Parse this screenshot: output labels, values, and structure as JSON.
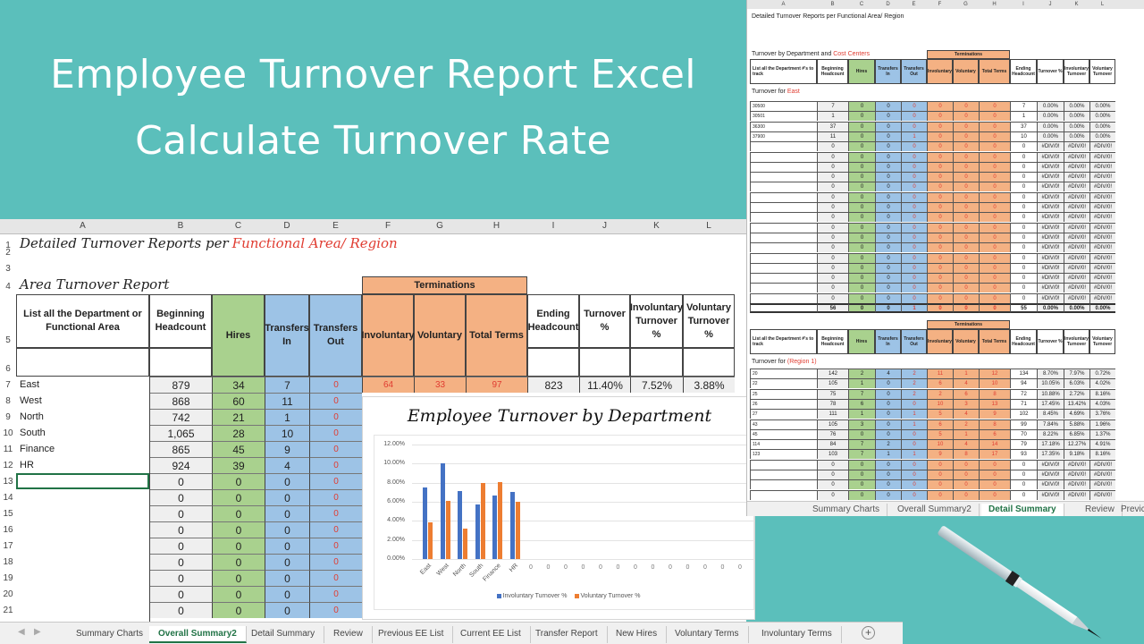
{
  "banner": {
    "line1": "Employee Turnover Report Excel",
    "line2": "Calculate Turnover Rate",
    "bg_color": "#5bbfbb"
  },
  "main_sheet": {
    "columns": [
      "A",
      "B",
      "C",
      "D",
      "E",
      "F",
      "G",
      "H",
      "I",
      "J",
      "K",
      "L"
    ],
    "title_black": "Detailed Turnover Reports per ",
    "title_red": "Functional Area/ Region",
    "section_title": "Area Turnover Report",
    "headers": {
      "dept": "List all the Department or Functional Area",
      "beginning": "Beginning Headcount",
      "hires": "Hires",
      "transfers_in": "Transfers In",
      "transfers_out": "Transfers Out",
      "terminations": "Terminations",
      "involuntary": "Involuntary",
      "voluntary": "Voluntary",
      "total_terms": "Total Terms",
      "ending": "Ending Headcount",
      "turnover_pct": "Turnover %",
      "invol_pct": "Involuntary Turnover %",
      "vol_pct": "Voluntary Turnover %"
    },
    "row_numbers": [
      "1",
      "2",
      "3",
      "4",
      "5",
      "6",
      "7",
      "8",
      "9",
      "10",
      "11",
      "12",
      "13",
      "14",
      "15",
      "16",
      "17",
      "18",
      "19",
      "20",
      "21"
    ],
    "rows": [
      {
        "dept": "East",
        "beginning": "879",
        "hires": "34",
        "tin": "7",
        "tout": "0",
        "invol": "64",
        "vol": "33",
        "total": "97",
        "ending": "823",
        "turnover": "11.40%",
        "invol_pct": "7.52%",
        "vol_pct": "3.88%"
      },
      {
        "dept": "West",
        "beginning": "868",
        "hires": "60",
        "tin": "11",
        "tout": "0"
      },
      {
        "dept": "North",
        "beginning": "742",
        "hires": "21",
        "tin": "1",
        "tout": "0"
      },
      {
        "dept": "South",
        "beginning": "1,065",
        "hires": "28",
        "tin": "10",
        "tout": "0"
      },
      {
        "dept": "Finance",
        "beginning": "865",
        "hires": "45",
        "tin": "9",
        "tout": "0"
      },
      {
        "dept": "HR",
        "beginning": "924",
        "hires": "39",
        "tin": "4",
        "tout": "0"
      },
      {
        "dept": "",
        "beginning": "0",
        "hires": "0",
        "tin": "0",
        "tout": "0"
      },
      {
        "dept": "",
        "beginning": "0",
        "hires": "0",
        "tin": "0",
        "tout": "0"
      },
      {
        "dept": "",
        "beginning": "0",
        "hires": "0",
        "tin": "0",
        "tout": "0"
      },
      {
        "dept": "",
        "beginning": "0",
        "hires": "0",
        "tin": "0",
        "tout": "0"
      },
      {
        "dept": "",
        "beginning": "0",
        "hires": "0",
        "tin": "0",
        "tout": "0"
      },
      {
        "dept": "",
        "beginning": "0",
        "hires": "0",
        "tin": "0",
        "tout": "0"
      },
      {
        "dept": "",
        "beginning": "0",
        "hires": "0",
        "tin": "0",
        "tout": "0"
      },
      {
        "dept": "",
        "beginning": "0",
        "hires": "0",
        "tin": "0",
        "tout": "0"
      },
      {
        "dept": "",
        "beginning": "0",
        "hires": "0",
        "tin": "0",
        "tout": "0"
      }
    ],
    "selected_cell": "A13"
  },
  "chart_data": {
    "type": "bar",
    "title": "Employee Turnover by Department",
    "categories": [
      "East",
      "West",
      "North",
      "South",
      "Finance",
      "HR",
      "0",
      "0",
      "0",
      "0",
      "0",
      "0",
      "0",
      "0",
      "0",
      "0",
      "0",
      "0",
      "0"
    ],
    "series": [
      {
        "name": "Involuntary Turnover %",
        "color": "#4472c4",
        "values": [
          7.52,
          10.0,
          7.1,
          5.7,
          6.7,
          7.0,
          0,
          0,
          0,
          0,
          0,
          0,
          0,
          0,
          0,
          0,
          0,
          0,
          0
        ]
      },
      {
        "name": "Voluntary Turnover %",
        "color": "#ed7d31",
        "values": [
          3.88,
          6.1,
          3.2,
          8.0,
          8.1,
          6.0,
          0,
          0,
          0,
          0,
          0,
          0,
          0,
          0,
          0,
          0,
          0,
          0,
          0
        ]
      }
    ],
    "yticks": [
      "12.00%",
      "10.00%",
      "8.00%",
      "6.00%",
      "4.00%",
      "2.00%",
      "0.00%"
    ],
    "ylim": [
      0,
      12
    ],
    "xlabel": "",
    "ylabel": "",
    "grid": true,
    "legend_position": "bottom"
  },
  "sheet_tabs": {
    "items": [
      "Summary Charts",
      "Overall Summary2",
      "Detail Summary",
      "Review",
      "Previous EE List",
      "Current EE List",
      "Transfer Report",
      "New Hires",
      "Voluntary Terms",
      "Involuntary Terms"
    ],
    "active": "Overall Summary2",
    "add_sheet": "+"
  },
  "inset_sheet": {
    "columns": [
      "A",
      "B",
      "C",
      "D",
      "E",
      "F",
      "G",
      "H",
      "I",
      "J",
      "K",
      "L"
    ],
    "title": "Detailed Turnover Reports per Functional Area/ Region",
    "section1_black": "Turnover by Department and ",
    "section1_red": "Cost Centers",
    "headers": [
      "List all the Department #'s to track",
      "Beginning Headcount",
      "Hires",
      "Transfers In",
      "Transfers Out",
      "Involuntary",
      "Voluntary",
      "Total Terms",
      "Ending Headcount",
      "Turnover %",
      "Involuntary Turnover",
      "Voluntary Turnover"
    ],
    "terminations": "Terminations",
    "group1_label": "Turnover for ",
    "group1_red": "East",
    "group1_rows": [
      [
        "30500",
        "7",
        "0",
        "0",
        "0",
        "0",
        "0",
        "0",
        "7",
        "0.00%",
        "0.00%",
        "0.00%"
      ],
      [
        "30501",
        "1",
        "0",
        "0",
        "0",
        "0",
        "0",
        "0",
        "1",
        "0.00%",
        "0.00%",
        "0.00%"
      ],
      [
        "36300",
        "37",
        "0",
        "0",
        "0",
        "0",
        "0",
        "0",
        "37",
        "0.00%",
        "0.00%",
        "0.00%"
      ],
      [
        "37900",
        "11",
        "0",
        "0",
        "1",
        "0",
        "0",
        "0",
        "10",
        "0.00%",
        "0.00%",
        "0.00%"
      ],
      [
        "",
        "0",
        "0",
        "0",
        "0",
        "0",
        "0",
        "0",
        "0",
        "#DIV/0!",
        "#DIV/0!",
        "#DIV/0!"
      ],
      [
        "",
        "0",
        "0",
        "0",
        "0",
        "0",
        "0",
        "0",
        "0",
        "#DIV/0!",
        "#DIV/0!",
        "#DIV/0!"
      ],
      [
        "",
        "0",
        "0",
        "0",
        "0",
        "0",
        "0",
        "0",
        "0",
        "#DIV/0!",
        "#DIV/0!",
        "#DIV/0!"
      ],
      [
        "",
        "0",
        "0",
        "0",
        "0",
        "0",
        "0",
        "0",
        "0",
        "#DIV/0!",
        "#DIV/0!",
        "#DIV/0!"
      ],
      [
        "",
        "0",
        "0",
        "0",
        "0",
        "0",
        "0",
        "0",
        "0",
        "#DIV/0!",
        "#DIV/0!",
        "#DIV/0!"
      ],
      [
        "",
        "0",
        "0",
        "0",
        "0",
        "0",
        "0",
        "0",
        "0",
        "#DIV/0!",
        "#DIV/0!",
        "#DIV/0!"
      ],
      [
        "",
        "0",
        "0",
        "0",
        "0",
        "0",
        "0",
        "0",
        "0",
        "#DIV/0!",
        "#DIV/0!",
        "#DIV/0!"
      ],
      [
        "",
        "0",
        "0",
        "0",
        "0",
        "0",
        "0",
        "0",
        "0",
        "#DIV/0!",
        "#DIV/0!",
        "#DIV/0!"
      ],
      [
        "",
        "0",
        "0",
        "0",
        "0",
        "0",
        "0",
        "0",
        "0",
        "#DIV/0!",
        "#DIV/0!",
        "#DIV/0!"
      ],
      [
        "",
        "0",
        "0",
        "0",
        "0",
        "0",
        "0",
        "0",
        "0",
        "#DIV/0!",
        "#DIV/0!",
        "#DIV/0!"
      ],
      [
        "",
        "0",
        "0",
        "0",
        "0",
        "0",
        "0",
        "0",
        "0",
        "#DIV/0!",
        "#DIV/0!",
        "#DIV/0!"
      ],
      [
        "",
        "0",
        "0",
        "0",
        "0",
        "0",
        "0",
        "0",
        "0",
        "#DIV/0!",
        "#DIV/0!",
        "#DIV/0!"
      ],
      [
        "",
        "0",
        "0",
        "0",
        "0",
        "0",
        "0",
        "0",
        "0",
        "#DIV/0!",
        "#DIV/0!",
        "#DIV/0!"
      ],
      [
        "",
        "0",
        "0",
        "0",
        "0",
        "0",
        "0",
        "0",
        "0",
        "#DIV/0!",
        "#DIV/0!",
        "#DIV/0!"
      ],
      [
        "",
        "0",
        "0",
        "0",
        "0",
        "0",
        "0",
        "0",
        "0",
        "#DIV/0!",
        "#DIV/0!",
        "#DIV/0!"
      ],
      [
        "",
        "0",
        "0",
        "0",
        "0",
        "0",
        "0",
        "0",
        "0",
        "#DIV/0!",
        "#DIV/0!",
        "#DIV/0!"
      ]
    ],
    "group1_total": [
      "",
      "56",
      "0",
      "0",
      "1",
      "0",
      "0",
      "0",
      "55",
      "0.00%",
      "0.00%",
      "0.00%"
    ],
    "group2_label": "Turnover for ",
    "group2_red": "(Region 1)",
    "group2_rows": [
      [
        "20",
        "142",
        "2",
        "4",
        "2",
        "11",
        "1",
        "12",
        "134",
        "8.70%",
        "7.97%",
        "0.72%"
      ],
      [
        "22",
        "105",
        "1",
        "0",
        "2",
        "6",
        "4",
        "10",
        "94",
        "10.05%",
        "6.03%",
        "4.02%"
      ],
      [
        "25",
        "75",
        "7",
        "0",
        "2",
        "2",
        "6",
        "8",
        "72",
        "10.88%",
        "2.72%",
        "8.16%"
      ],
      [
        "26",
        "78",
        "6",
        "0",
        "0",
        "10",
        "3",
        "13",
        "71",
        "17.45%",
        "13.42%",
        "4.03%"
      ],
      [
        "27",
        "111",
        "1",
        "0",
        "1",
        "5",
        "4",
        "9",
        "102",
        "8.45%",
        "4.69%",
        "3.76%"
      ],
      [
        "43",
        "105",
        "3",
        "0",
        "1",
        "6",
        "2",
        "8",
        "99",
        "7.84%",
        "5.88%",
        "1.96%"
      ],
      [
        "45",
        "76",
        "0",
        "0",
        "0",
        "5",
        "1",
        "6",
        "70",
        "8.22%",
        "6.85%",
        "1.37%"
      ],
      [
        "114",
        "84",
        "7",
        "2",
        "0",
        "10",
        "4",
        "14",
        "79",
        "17.18%",
        "12.27%",
        "4.91%"
      ],
      [
        "123",
        "103",
        "7",
        "1",
        "1",
        "9",
        "8",
        "17",
        "93",
        "17.35%",
        "9.18%",
        "8.16%"
      ],
      [
        "",
        "0",
        "0",
        "0",
        "0",
        "0",
        "0",
        "0",
        "0",
        "#DIV/0!",
        "#DIV/0!",
        "#DIV/0!"
      ],
      [
        "",
        "0",
        "0",
        "0",
        "0",
        "0",
        "0",
        "0",
        "0",
        "#DIV/0!",
        "#DIV/0!",
        "#DIV/0!"
      ],
      [
        "",
        "0",
        "0",
        "0",
        "0",
        "0",
        "0",
        "0",
        "0",
        "#DIV/0!",
        "#DIV/0!",
        "#DIV/0!"
      ],
      [
        "",
        "0",
        "0",
        "0",
        "0",
        "0",
        "0",
        "0",
        "0",
        "#DIV/0!",
        "#DIV/0!",
        "#DIV/0!"
      ]
    ],
    "tabs": [
      "Summary Charts",
      "Overall Summary2",
      "Detail Summary",
      "Review",
      "Previc"
    ],
    "active_tab": "Detail Summary"
  },
  "colors": {
    "hires_green": "#a9d18e",
    "transfers_blue": "#9dc3e6",
    "terminations_orange": "#f4b183",
    "red_text": "#e03c31",
    "excel_green": "#217346"
  }
}
